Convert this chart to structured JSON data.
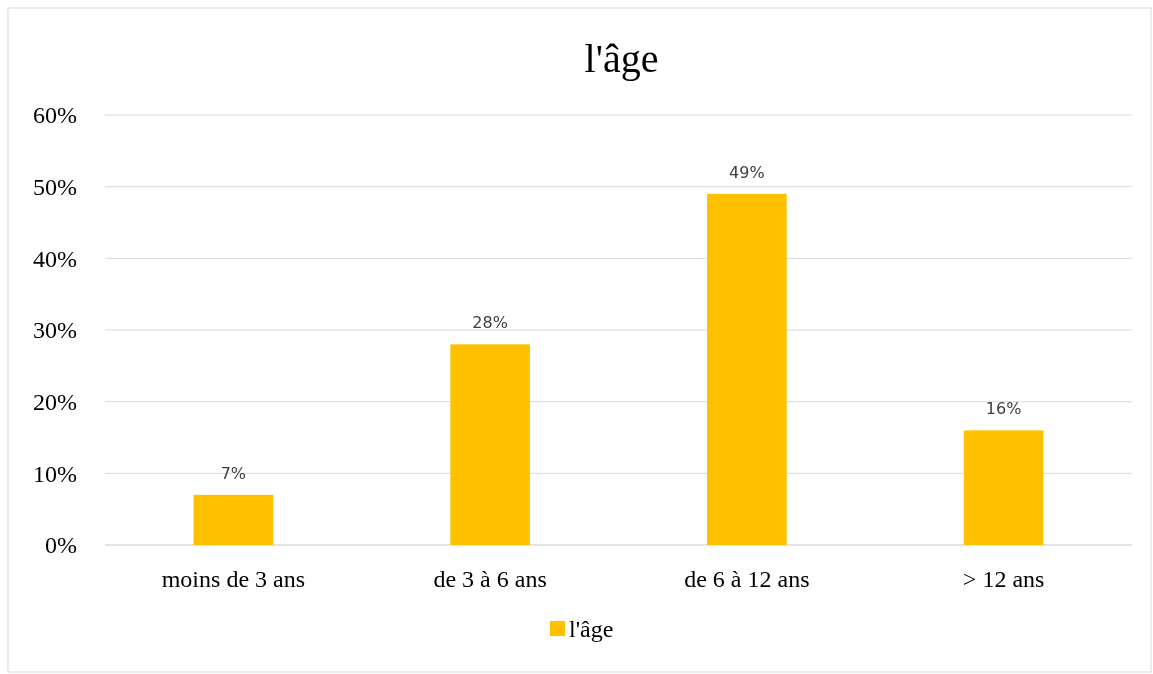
{
  "chart_data": {
    "type": "bar",
    "title": "l'âge",
    "categories": [
      "moins de 3 ans",
      "de 3 à 6 ans",
      "de 6 à 12 ans",
      "> 12 ans"
    ],
    "series": [
      {
        "name": "l'âge",
        "color": "#ffc000",
        "values": [
          7,
          28,
          49,
          16
        ],
        "value_labels": [
          "7%",
          "28%",
          "49%",
          "16%"
        ]
      }
    ],
    "ylim": [
      0,
      60
    ],
    "yticks": [
      {
        "value": 0,
        "label": "0%"
      },
      {
        "value": 10,
        "label": "10%"
      },
      {
        "value": 20,
        "label": "20%"
      },
      {
        "value": 30,
        "label": "30%"
      },
      {
        "value": 40,
        "label": "40%"
      },
      {
        "value": 50,
        "label": "50%"
      },
      {
        "value": 60,
        "label": "60%"
      }
    ],
    "grid": "y",
    "legend": "bottom"
  }
}
